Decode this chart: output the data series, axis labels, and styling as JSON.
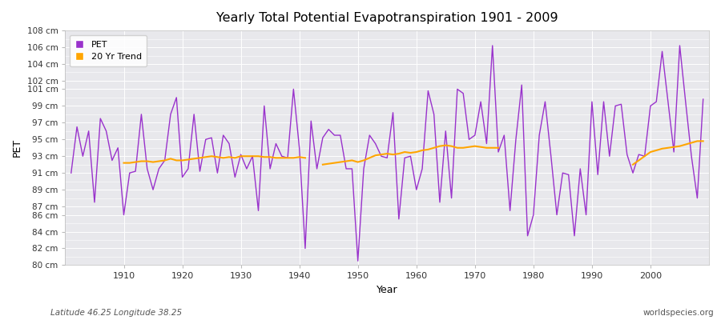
{
  "title": "Yearly Total Potential Evapotranspiration 1901 - 2009",
  "xlabel": "Year",
  "ylabel": "PET",
  "subtitle_left": "Latitude 46.25 Longitude 38.25",
  "subtitle_right": "worldspecies.org",
  "years": [
    1901,
    1902,
    1903,
    1904,
    1905,
    1906,
    1907,
    1908,
    1909,
    1910,
    1911,
    1912,
    1913,
    1914,
    1915,
    1916,
    1917,
    1918,
    1919,
    1920,
    1921,
    1922,
    1923,
    1924,
    1925,
    1926,
    1927,
    1928,
    1929,
    1930,
    1931,
    1932,
    1933,
    1934,
    1935,
    1936,
    1937,
    1938,
    1939,
    1940,
    1941,
    1942,
    1943,
    1944,
    1945,
    1946,
    1947,
    1948,
    1949,
    1950,
    1951,
    1952,
    1953,
    1954,
    1955,
    1956,
    1957,
    1958,
    1959,
    1960,
    1961,
    1962,
    1963,
    1964,
    1965,
    1966,
    1967,
    1968,
    1969,
    1970,
    1971,
    1972,
    1973,
    1974,
    1975,
    1976,
    1977,
    1978,
    1979,
    1980,
    1981,
    1982,
    1983,
    1984,
    1985,
    1986,
    1987,
    1988,
    1989,
    1990,
    1991,
    1992,
    1993,
    1994,
    1995,
    1996,
    1997,
    1998,
    1999,
    2000,
    2001,
    2002,
    2003,
    2004,
    2005,
    2006,
    2007,
    2008,
    2009
  ],
  "pet": [
    91.0,
    96.5,
    93.0,
    96.0,
    87.5,
    97.5,
    96.0,
    92.5,
    94.0,
    86.0,
    91.0,
    91.2,
    98.0,
    91.5,
    89.0,
    91.5,
    92.5,
    98.0,
    100.0,
    90.5,
    91.5,
    98.0,
    91.2,
    95.0,
    95.2,
    91.0,
    95.5,
    94.5,
    90.5,
    93.2,
    91.5,
    93.0,
    86.5,
    99.0,
    91.5,
    94.5,
    93.0,
    92.8,
    101.0,
    94.0,
    82.0,
    97.2,
    91.5,
    95.2,
    96.2,
    95.5,
    95.5,
    91.5,
    91.5,
    80.5,
    91.5,
    95.5,
    94.5,
    93.0,
    92.8,
    98.2,
    85.5,
    92.8,
    93.0,
    89.0,
    91.5,
    100.8,
    98.0,
    87.5,
    96.0,
    88.0,
    101.0,
    100.5,
    95.0,
    95.5,
    99.5,
    94.5,
    106.2,
    93.5,
    95.5,
    86.5,
    95.0,
    101.5,
    83.5,
    86.0,
    95.5,
    99.5,
    93.0,
    86.0,
    91.0,
    90.8,
    83.5,
    91.5,
    86.0,
    99.5,
    90.8,
    99.5,
    93.0,
    99.0,
    99.2,
    93.2,
    91.0,
    93.2,
    93.0,
    99.0,
    99.5,
    105.5,
    99.5,
    93.5,
    106.2,
    99.5,
    93.0,
    88.0,
    99.8
  ],
  "trend_segments": [
    {
      "years": [
        1910,
        1911,
        1912,
        1913,
        1914,
        1915,
        1916,
        1917,
        1918,
        1919,
        1920,
        1921,
        1922,
        1923,
        1924,
        1925,
        1926,
        1927,
        1928,
        1929,
        1930,
        1931,
        1932,
        1933,
        1934,
        1935,
        1936,
        1937,
        1938,
        1939,
        1940,
        1941
      ],
      "values": [
        92.2,
        92.2,
        92.3,
        92.4,
        92.4,
        92.3,
        92.4,
        92.5,
        92.7,
        92.5,
        92.5,
        92.6,
        92.7,
        92.8,
        92.9,
        93.0,
        92.9,
        92.8,
        92.9,
        92.8,
        93.0,
        93.0,
        93.0,
        93.0,
        92.9,
        92.9,
        92.8,
        92.8,
        92.8,
        92.8,
        92.9,
        92.8
      ]
    },
    {
      "years": [
        1944,
        1945,
        1946,
        1947,
        1948,
        1949,
        1950,
        1951,
        1952,
        1953,
        1954,
        1955,
        1956,
        1957,
        1958,
        1959,
        1960,
        1961,
        1962,
        1963,
        1964,
        1965,
        1966,
        1967,
        1968,
        1969,
        1970,
        1971,
        1972,
        1973,
        1974
      ],
      "values": [
        92.0,
        92.1,
        92.2,
        92.3,
        92.4,
        92.5,
        92.3,
        92.5,
        92.8,
        93.1,
        93.2,
        93.3,
        93.2,
        93.3,
        93.5,
        93.4,
        93.5,
        93.7,
        93.8,
        94.0,
        94.2,
        94.3,
        94.2,
        94.0,
        94.0,
        94.1,
        94.2,
        94.1,
        94.0,
        94.0,
        94.0
      ]
    },
    {
      "years": [
        1997,
        1998,
        1999,
        2000,
        2001,
        2002,
        2003,
        2004,
        2005,
        2006,
        2007,
        2008,
        2009
      ],
      "values": [
        92.0,
        92.5,
        93.0,
        93.5,
        93.7,
        93.9,
        94.0,
        94.1,
        94.2,
        94.4,
        94.6,
        94.8,
        94.8
      ]
    }
  ],
  "pet_color": "#9932CC",
  "trend_color": "#FFA500",
  "bg_color": "#ffffff",
  "plot_bg_color": "#e8e8ec",
  "ylim": [
    80,
    108
  ],
  "yticks": [
    80,
    82,
    84,
    86,
    87,
    89,
    91,
    93,
    95,
    97,
    99,
    101,
    102,
    104,
    106,
    108
  ],
  "xlim": [
    1900,
    2010
  ],
  "xticks": [
    1910,
    1920,
    1930,
    1940,
    1950,
    1960,
    1970,
    1980,
    1990,
    2000
  ]
}
